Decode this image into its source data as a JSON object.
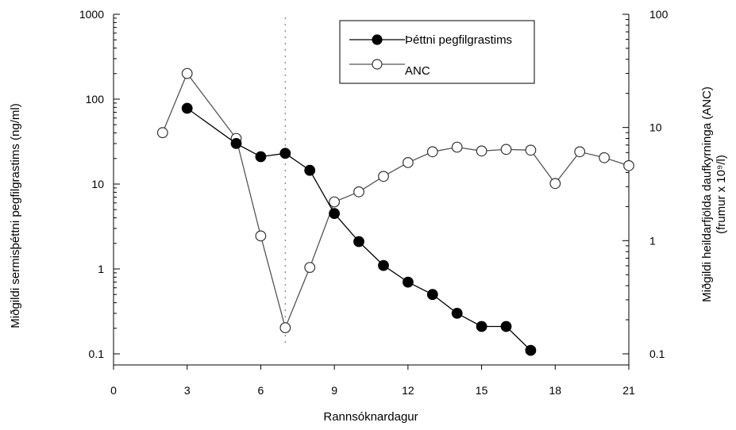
{
  "chart_data": {
    "type": "line",
    "xlabel": "Rannsóknardagur",
    "ylabel_left": "Miðgildi sermisþéttni pegfilgrastims (ng/ml)",
    "ylabel_right_line1": "Miðgildi heildarfjölda daufkyrninga (ANC)",
    "ylabel_right_line2": "(frumur x 10⁹/l)",
    "x_range": [
      0,
      21
    ],
    "x_ticks": [
      "0",
      "3",
      "6",
      "9",
      "12",
      "15",
      "18",
      "21"
    ],
    "y_left_scale": "log",
    "y_left_range": [
      0.1,
      1000
    ],
    "y_left_ticks": [
      "0.1",
      "1",
      "10",
      "100",
      "1000"
    ],
    "y_right_scale": "log",
    "y_right_range": [
      0.1,
      100
    ],
    "y_right_ticks": [
      "0.1",
      "1",
      "10",
      "100"
    ],
    "grid": false,
    "reference_line_x": 7,
    "legend_position": "top-right",
    "series": [
      {
        "name": "Þéttni pegfilgrastims",
        "axis": "left",
        "marker": "filled-circle",
        "color": "#000000",
        "x": [
          3,
          5,
          6,
          7,
          8,
          9,
          10,
          11,
          12,
          13,
          14,
          15,
          16,
          17
        ],
        "values": [
          78,
          30,
          21,
          23,
          14.5,
          4.5,
          2.1,
          1.1,
          0.7,
          0.5,
          0.3,
          0.21,
          0.21,
          0.11
        ]
      },
      {
        "name": "ANC",
        "axis": "right",
        "marker": "open-circle",
        "color": "#555555",
        "x": [
          2,
          3,
          5,
          6,
          7,
          8,
          9,
          10,
          11,
          12,
          13,
          14,
          15,
          16,
          17,
          18,
          19,
          20,
          21
        ],
        "values": [
          9,
          30,
          8,
          1.1,
          0.17,
          0.58,
          2.2,
          2.7,
          3.7,
          4.9,
          6.1,
          6.7,
          6.2,
          6.4,
          6.3,
          3.2,
          6.1,
          5.4,
          4.6
        ]
      }
    ]
  }
}
